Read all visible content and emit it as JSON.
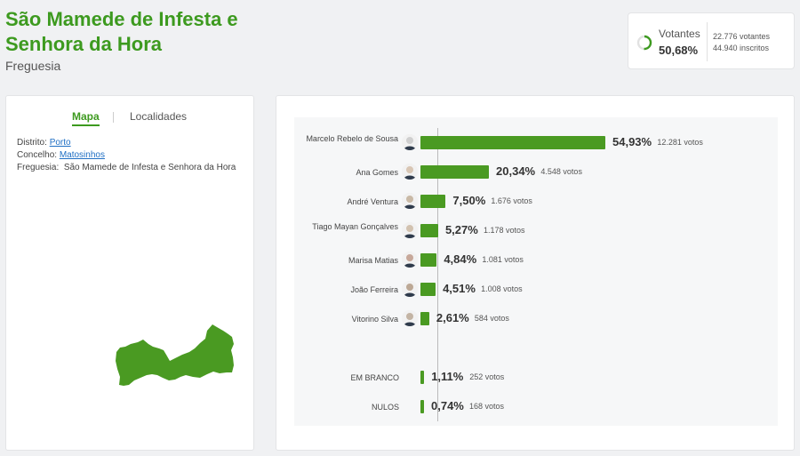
{
  "header": {
    "title": "São Mamede de Infesta e Senhora da Hora",
    "subtitle": "Freguesia"
  },
  "turnout": {
    "label": "Votantes",
    "percent": "50,68%",
    "percent_value": 0.5068,
    "voters": "22.776 votantes",
    "registered": "44.940 inscritos"
  },
  "tabs": {
    "map": "Mapa",
    "places": "Localidades"
  },
  "location": {
    "district_label": "Distrito:",
    "district": "Porto",
    "municipality_label": "Concelho:",
    "municipality": "Matosinhos",
    "parish_label": "Freguesia:",
    "parish": "São Mamede de Infesta e Senhora da Hora"
  },
  "colors": {
    "accent": "#3d9a1f",
    "bar": "#4a9a22",
    "link": "#1f6fc4"
  },
  "chart_data": {
    "type": "bar",
    "orientation": "horizontal",
    "categories": [
      "Marcelo Rebelo de Sousa",
      "Ana Gomes",
      "André Ventura",
      "Tiago Mayan Gonçalves",
      "Marisa Matias",
      "João Ferreira",
      "Vitorino Silva",
      "EM BRANCO",
      "NULOS"
    ],
    "values": [
      54.93,
      20.34,
      7.5,
      5.27,
      4.84,
      4.51,
      2.61,
      1.11,
      0.74
    ],
    "labels": [
      "54,93%",
      "20,34%",
      "7,50%",
      "5,27%",
      "4,84%",
      "4,51%",
      "2,61%",
      "1,11%",
      "0,74%"
    ],
    "votes": [
      "12.281 votos",
      "4.548 votos",
      "1.676 votos",
      "1.178 votos",
      "1.081 votos",
      "1.008 votos",
      "584 votos",
      "252 votos",
      "168 votos"
    ],
    "xlim": [
      0,
      54.93
    ]
  }
}
